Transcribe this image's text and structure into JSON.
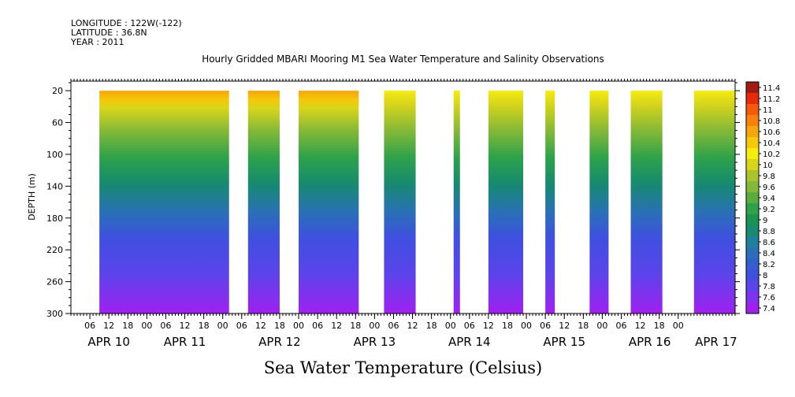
{
  "header": {
    "longitude": "LONGITUDE : 122W(-122)",
    "latitude": "LATITUDE : 36.8N",
    "year": "YEAR : 2011"
  },
  "chart_data": {
    "type": "heatmap",
    "title": "Hourly Gridded MBARI Mooring M1 Sea Water Temperature and Salinity Observations",
    "subtitle": "Sea Water Temperature (Celsius)",
    "ylabel": "DEPTH (m)",
    "x_range_hours": [
      0,
      210
    ],
    "x_hour_ticks": [
      "06",
      "12",
      "18",
      "00",
      "06",
      "12",
      "18",
      "00",
      "06",
      "12",
      "18",
      "00",
      "06",
      "12",
      "18",
      "00",
      "06",
      "12",
      "18",
      "00",
      "06",
      "12",
      "18",
      "00",
      "06",
      "12",
      "18",
      "00",
      "06",
      "12",
      "18",
      "00"
    ],
    "x_tick_hours": [
      6,
      12,
      18,
      24,
      30,
      36,
      42,
      48,
      54,
      60,
      66,
      72,
      78,
      84,
      90,
      96,
      102,
      108,
      114,
      120,
      126,
      132,
      138,
      144,
      150,
      156,
      162,
      168,
      174,
      180,
      186,
      192
    ],
    "day_labels": [
      {
        "label": "APR 10",
        "hour": 12
      },
      {
        "label": "APR 11",
        "hour": 36
      },
      {
        "label": "APR 12",
        "hour": 66
      },
      {
        "label": "APR 13",
        "hour": 96
      },
      {
        "label": "APR 14",
        "hour": 126
      },
      {
        "label": "APR 15",
        "hour": 156
      },
      {
        "label": "APR 16",
        "hour": 183
      },
      {
        "label": "APR 17",
        "hour": 204
      }
    ],
    "y_ticks": [
      20,
      60,
      100,
      140,
      180,
      220,
      260,
      300
    ],
    "y_range": [
      8,
      300
    ],
    "data_segments_hours": [
      [
        9,
        50
      ],
      [
        56,
        66
      ],
      [
        72,
        91
      ],
      [
        99,
        109
      ],
      [
        121,
        123
      ],
      [
        132,
        143
      ],
      [
        150,
        153
      ],
      [
        164,
        170
      ],
      [
        177,
        187
      ],
      [
        197,
        210
      ]
    ],
    "warm_segments": [
      [
        9,
        50
      ],
      [
        56,
        66
      ],
      [
        72,
        91
      ]
    ],
    "colorbar": {
      "levels": [
        "7.4",
        "7.6",
        "7.8",
        "8",
        "8.2",
        "8.4",
        "8.6",
        "8.8",
        "9",
        "9.2",
        "9.4",
        "9.6",
        "9.8",
        "10",
        "10.2",
        "10.4",
        "10.6",
        "10.8",
        "11",
        "11.2",
        "11.4"
      ],
      "colors": [
        "#a020f0",
        "#7e33ef",
        "#5b44ea",
        "#3f50df",
        "#3360cf",
        "#2a6fb8",
        "#1f7f9c",
        "#178a70",
        "#1a9450",
        "#2ea24a",
        "#5aac3d",
        "#84b838",
        "#acc42b",
        "#d7d51b",
        "#f5ec10",
        "#f6c80a",
        "#f7a50d",
        "#f6820c",
        "#f45a0c",
        "#e52b0e",
        "#a21a12"
      ]
    }
  }
}
